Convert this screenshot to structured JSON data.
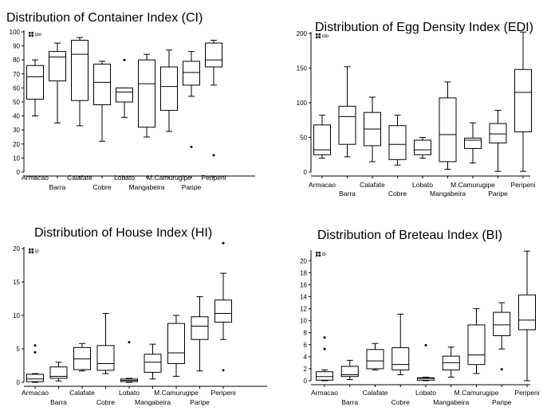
{
  "chart_data": [
    {
      "type": "box",
      "title": "Distribution of Container Index (CI)",
      "legend": "ipo",
      "categories": [
        "Armacao",
        "Barra",
        "Calafate",
        "Cobre",
        "Lobato",
        "Mangabeira",
        "M.Camurugipe",
        "Paripe",
        "Peripeni"
      ],
      "yticks": [
        0,
        10,
        20,
        30,
        40,
        50,
        60,
        70,
        80,
        90,
        100
      ],
      "ylim": [
        0,
        100
      ],
      "boxes": [
        {
          "min": 40,
          "q1": 52,
          "median": 68,
          "q3": 76,
          "max": 80,
          "outliers": []
        },
        {
          "min": 35,
          "q1": 65,
          "median": 82,
          "q3": 86,
          "max": 92,
          "outliers": []
        },
        {
          "min": 33,
          "q1": 51,
          "median": 84,
          "q3": 94,
          "max": 96,
          "outliers": []
        },
        {
          "min": 22,
          "q1": 48,
          "median": 64,
          "q3": 77,
          "max": 79,
          "outliers": []
        },
        {
          "min": 39,
          "q1": 50,
          "median": 57,
          "q3": 60,
          "max": 60,
          "outliers": [
            80
          ]
        },
        {
          "min": 25,
          "q1": 32,
          "median": 63,
          "q3": 80,
          "max": 84,
          "outliers": []
        },
        {
          "min": 29,
          "q1": 44,
          "median": 61,
          "q3": 75,
          "max": 87,
          "outliers": []
        },
        {
          "min": 54,
          "q1": 62,
          "median": 71,
          "q3": 79,
          "max": 86,
          "outliers": [
            18
          ]
        },
        {
          "min": 62,
          "q1": 75,
          "median": 80,
          "q3": 92,
          "max": 94,
          "outliers": [
            12
          ]
        }
      ]
    },
    {
      "type": "box",
      "title": "Distribution of Egg Density Index (EDI)",
      "legend": "ido",
      "categories": [
        "Armacao",
        "Barra",
        "Calafate",
        "Cobre",
        "Lobato",
        "Mangabeira",
        "M.Camurugipe",
        "Paripe",
        "Peripeni"
      ],
      "yticks": [
        0,
        50,
        100,
        150,
        200
      ],
      "ylim": [
        0,
        200
      ],
      "boxes": [
        {
          "min": 20,
          "q1": 25,
          "median": 32,
          "q3": 68,
          "max": 82,
          "outliers": []
        },
        {
          "min": 22,
          "q1": 40,
          "median": 80,
          "q3": 95,
          "max": 152,
          "outliers": []
        },
        {
          "min": 15,
          "q1": 38,
          "median": 62,
          "q3": 86,
          "max": 108,
          "outliers": []
        },
        {
          "min": 10,
          "q1": 18,
          "median": 40,
          "q3": 67,
          "max": 82,
          "outliers": []
        },
        {
          "min": 20,
          "q1": 25,
          "median": 32,
          "q3": 46,
          "max": 50,
          "outliers": []
        },
        {
          "min": 4,
          "q1": 15,
          "median": 54,
          "q3": 107,
          "max": 130,
          "outliers": []
        },
        {
          "min": 13,
          "q1": 34,
          "median": 46,
          "q3": 49,
          "max": 71,
          "outliers": []
        },
        {
          "min": 1,
          "q1": 42,
          "median": 55,
          "q3": 70,
          "max": 89,
          "outliers": []
        },
        {
          "min": 1,
          "q1": 58,
          "median": 115,
          "q3": 148,
          "max": 202,
          "outliers": []
        }
      ]
    },
    {
      "type": "box",
      "title": "Distribution of House Index (HI)",
      "legend": "ip",
      "categories": [
        "Armacao",
        "Barra",
        "Calafate",
        "Cobre",
        "Lobato",
        "Mangabeira",
        "M.Camurugipe",
        "Paripe",
        "Peripeni"
      ],
      "yticks": [
        0,
        5,
        10,
        15,
        20
      ],
      "ylim": [
        0,
        20
      ],
      "boxes": [
        {
          "min": 0,
          "q1": 0.1,
          "median": 0.5,
          "q3": 1.2,
          "max": 1.3,
          "outliers": [
            4.5,
            5.5
          ]
        },
        {
          "min": 0.2,
          "q1": 0.6,
          "median": 0.9,
          "q3": 2.3,
          "max": 3,
          "outliers": []
        },
        {
          "min": 1.7,
          "q1": 1.9,
          "median": 3.5,
          "q3": 5.2,
          "max": 5.8,
          "outliers": []
        },
        {
          "min": 1.3,
          "q1": 1.8,
          "median": 2.8,
          "q3": 5.5,
          "max": 10.3,
          "outliers": []
        },
        {
          "min": 0,
          "q1": 0.1,
          "median": 0.3,
          "q3": 0.5,
          "max": 0.6,
          "outliers": [
            6
          ]
        },
        {
          "min": 0.5,
          "q1": 1.5,
          "median": 3,
          "q3": 4.2,
          "max": 5.7,
          "outliers": []
        },
        {
          "min": 0.9,
          "q1": 2.8,
          "median": 4.4,
          "q3": 8.8,
          "max": 10,
          "outliers": []
        },
        {
          "min": 1.7,
          "q1": 6.4,
          "median": 8.4,
          "q3": 9.8,
          "max": 12.8,
          "outliers": []
        },
        {
          "min": 6.4,
          "q1": 9,
          "median": 10.3,
          "q3": 12.3,
          "max": 16.3,
          "outliers": [
            1.8,
            20.8
          ]
        }
      ]
    },
    {
      "type": "box",
      "title": "Distribution of Breteau Index (BI)",
      "legend": "ib",
      "categories": [
        "Armacao",
        "Barra",
        "Calafate",
        "Cobre",
        "Lobato",
        "Mangabeira",
        "M.Camurugipe",
        "Paripe",
        "Peripeni"
      ],
      "yticks": [
        0,
        2,
        4,
        6,
        8,
        10,
        12,
        14,
        16,
        18,
        20
      ],
      "ylim": [
        0,
        21.5
      ],
      "boxes": [
        {
          "min": 0,
          "q1": 0.1,
          "median": 0.7,
          "q3": 1.5,
          "max": 1.8,
          "outliers": [
            5.3,
            7.2
          ]
        },
        {
          "min": 0.2,
          "q1": 0.7,
          "median": 1,
          "q3": 2.4,
          "max": 3.4,
          "outliers": []
        },
        {
          "min": 1.8,
          "q1": 2,
          "median": 3.3,
          "q3": 5.2,
          "max": 6.2,
          "outliers": []
        },
        {
          "min": 1,
          "q1": 1.8,
          "median": 2.7,
          "q3": 5.5,
          "max": 11.1,
          "outliers": []
        },
        {
          "min": 0,
          "q1": 0.1,
          "median": 0.4,
          "q3": 0.5,
          "max": 0.6,
          "outliers": [
            5.9
          ]
        },
        {
          "min": 0.6,
          "q1": 1.8,
          "median": 3,
          "q3": 4.1,
          "max": 5.6,
          "outliers": []
        },
        {
          "min": 1.2,
          "q1": 2.7,
          "median": 4.3,
          "q3": 9.3,
          "max": 12,
          "outliers": []
        },
        {
          "min": 5.3,
          "q1": 7.5,
          "median": 9.3,
          "q3": 11.4,
          "max": 13,
          "outliers": [
            1.9
          ]
        },
        {
          "min": 0,
          "q1": 8.5,
          "median": 10.1,
          "q3": 14.3,
          "max": 21.6,
          "outliers": []
        }
      ]
    }
  ]
}
